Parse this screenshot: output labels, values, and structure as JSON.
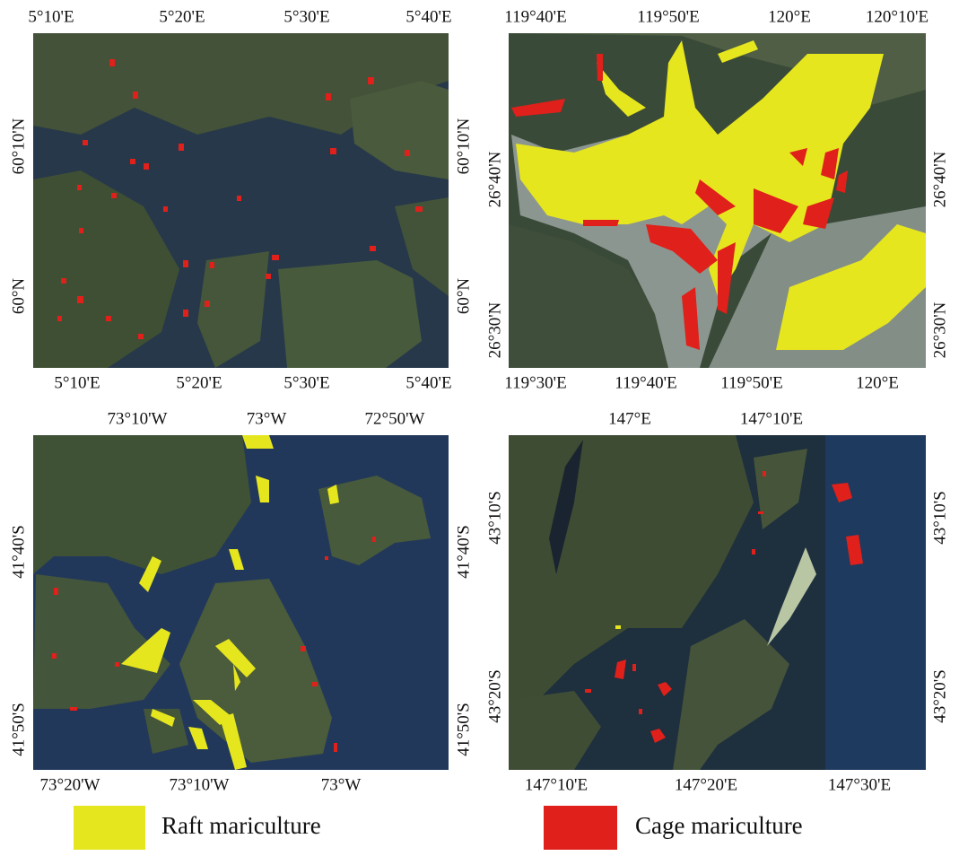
{
  "panels": [
    {
      "top_labels": [
        "5°10'E",
        "5°20'E",
        "5°30'E",
        "5°40'E"
      ],
      "bottom_labels": [
        "5°10'E",
        "5°20'E",
        "5°30'E",
        "5°40'E"
      ],
      "left_labels": [
        "60°10'N",
        "60°N"
      ],
      "right_labels": [
        "60°10'N",
        "60°N"
      ]
    },
    {
      "top_labels": [
        "119°40'E",
        "119°50'E",
        "120°E",
        "120°10'E"
      ],
      "bottom_labels": [
        "119°30'E",
        "119°40'E",
        "119°50'E",
        "120°E"
      ],
      "left_labels": [
        "26°40'N",
        "26°30'N"
      ],
      "right_labels": [
        "26°40'N",
        "26°30'N"
      ]
    },
    {
      "top_labels": [
        "73°10'W",
        "73°W",
        "72°50'W"
      ],
      "bottom_labels": [
        "73°20'W",
        "73°10'W",
        "73°W"
      ],
      "left_labels": [
        "41°40'S",
        "41°50'S"
      ],
      "right_labels": [
        "41°40'S",
        "41°50'S"
      ]
    },
    {
      "top_labels": [
        "147°E",
        "147°10'E"
      ],
      "bottom_labels": [
        "147°10'E",
        "147°20'E",
        "147°30'E"
      ],
      "left_labels": [
        "43°10'S",
        "43°20'S"
      ],
      "right_labels": [
        "43°10'S",
        "43°20'S"
      ]
    }
  ],
  "legend": [
    "Raft mariculture",
    "Cage mariculture"
  ]
}
